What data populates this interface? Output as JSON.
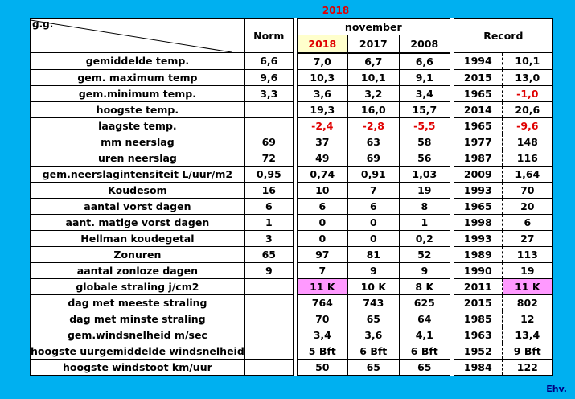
{
  "year_title": "2018",
  "header": {
    "corner": "g.g.",
    "norm": "Norm",
    "month": "november",
    "years": [
      "2018",
      "2017",
      "2008"
    ],
    "record": "Record"
  },
  "rows": [
    {
      "label": "gemiddelde temp.",
      "norm": "6,6",
      "y2018": "7,0",
      "y2017": "6,7",
      "y2008": "6,6",
      "rec_year": "1994",
      "rec_val": "10,1"
    },
    {
      "label": "gem. maximum temp",
      "norm": "9,6",
      "y2018": "10,3",
      "y2017": "10,1",
      "y2008": "9,1",
      "rec_year": "2015",
      "rec_val": "13,0"
    },
    {
      "label": "gem.minimum temp.",
      "norm": "3,3",
      "y2018": "3,6",
      "y2017": "3,2",
      "y2008": "3,4",
      "rec_year": "1965",
      "rec_val": "-1,0"
    },
    {
      "label": "hoogste temp.",
      "norm": "",
      "y2018": "19,3",
      "y2017": "16,0",
      "y2008": "15,7",
      "rec_year": "2014",
      "rec_val": "20,6"
    },
    {
      "label": "laagste temp.",
      "norm": "",
      "y2018": "-2,4",
      "y2017": "-2,8",
      "y2008": "-5,5",
      "rec_year": "1965",
      "rec_val": "-9,6"
    },
    {
      "label": "mm neerslag",
      "norm": "69",
      "y2018": "37",
      "y2017": "63",
      "y2008": "58",
      "rec_year": "1977",
      "rec_val": "148"
    },
    {
      "label": "uren neerslag",
      "norm": "72",
      "y2018": "49",
      "y2017": "69",
      "y2008": "56",
      "rec_year": "1987",
      "rec_val": "116"
    },
    {
      "label": "gem.neerslagintensiteit L/uur/m2",
      "norm": "0,95",
      "y2018": "0,74",
      "y2017": "0,91",
      "y2008": "1,03",
      "rec_year": "2009",
      "rec_val": "1,64"
    },
    {
      "label": "Koudesom",
      "norm": "16",
      "y2018": "10",
      "y2017": "7",
      "y2008": "19",
      "rec_year": "1993",
      "rec_val": "70"
    },
    {
      "label": "aantal vorst dagen",
      "norm": "6",
      "y2018": "6",
      "y2017": "6",
      "y2008": "8",
      "rec_year": "1965",
      "rec_val": "20"
    },
    {
      "label": "aant. matige vorst dagen",
      "norm": "1",
      "y2018": "0",
      "y2017": "0",
      "y2008": "1",
      "rec_year": "1998",
      "rec_val": "6"
    },
    {
      "label": "Hellman koudegetal",
      "norm": "3",
      "y2018": "0",
      "y2017": "0",
      "y2008": "0,2",
      "rec_year": "1993",
      "rec_val": "27"
    },
    {
      "label": "Zonuren",
      "norm": "65",
      "y2018": "97",
      "y2017": "81",
      "y2008": "52",
      "rec_year": "1989",
      "rec_val": "113"
    },
    {
      "label": "aantal zonloze dagen",
      "norm": "9",
      "y2018": "7",
      "y2017": "9",
      "y2008": "9",
      "rec_year": "1990",
      "rec_val": "19"
    },
    {
      "label": "globale straling j/cm2",
      "norm": "",
      "y2018": "11 K",
      "y2017": "10 K",
      "y2008": "8 K",
      "rec_year": "2011",
      "rec_val": "11 K"
    },
    {
      "label": "dag met meeste straling",
      "norm": "",
      "y2018": "764",
      "y2017": "743",
      "y2008": "625",
      "rec_year": "2015",
      "rec_val": "802"
    },
    {
      "label": "dag met minste straling",
      "norm": "",
      "y2018": "70",
      "y2017": "65",
      "y2008": "64",
      "rec_year": "1985",
      "rec_val": "12"
    },
    {
      "label": "gem.windsnelheid m/sec",
      "norm": "",
      "y2018": "3,4",
      "y2017": "3,6",
      "y2008": "4,1",
      "rec_year": "1963",
      "rec_val": "13,4"
    },
    {
      "label": "hoogste uurgemiddelde windsnelheid",
      "norm": "",
      "y2018": "5 Bft",
      "y2017": "6 Bft",
      "y2008": "6 Bft",
      "rec_year": "1952",
      "rec_val": "9 Bft"
    },
    {
      "label": "hoogste windstoot km/uur",
      "norm": "",
      "y2018": "50",
      "y2017": "65",
      "y2008": "65",
      "rec_year": "1984",
      "rec_val": "122"
    }
  ],
  "signature": "Ehv.",
  "colors": {
    "background": "#00b0f0",
    "negative": "#e00000",
    "highlight": "#ff99ff",
    "current_year": "#ffffcc"
  }
}
